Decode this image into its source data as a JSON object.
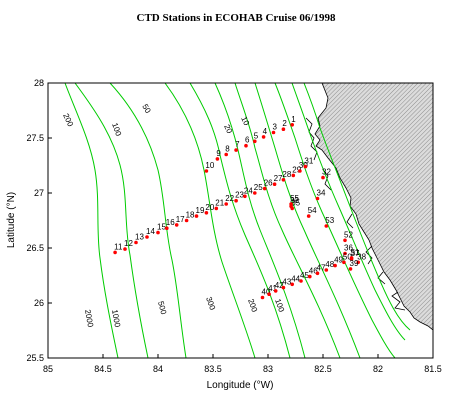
{
  "title": "CTD Stations in ECOHAB Cruise 06/1998",
  "x_axis": {
    "label": "Longitude (°W)",
    "range": [
      85,
      81.5
    ],
    "ticks": [
      {
        "value": 85,
        "label": "85"
      },
      {
        "value": 84.5,
        "label": "84.5"
      },
      {
        "value": 84,
        "label": "84"
      },
      {
        "value": 83.5,
        "label": "83.5"
      },
      {
        "value": 83,
        "label": "83"
      },
      {
        "value": 82.5,
        "label": "82.5"
      },
      {
        "value": 82,
        "label": "82"
      },
      {
        "value": 81.5,
        "label": "81.5"
      }
    ]
  },
  "y_axis": {
    "label": "Latitude (°N)",
    "range": [
      25.5,
      28
    ],
    "ticks": [
      {
        "value": 25.5,
        "label": "25.5"
      },
      {
        "value": 26,
        "label": "26"
      },
      {
        "value": 26.5,
        "label": "26.5"
      },
      {
        "value": 27,
        "label": "27"
      },
      {
        "value": 27.5,
        "label": "27.5"
      },
      {
        "value": 28,
        "label": "28"
      }
    ]
  },
  "colors": {
    "station": "#ff0000",
    "contour": "#00cc00",
    "land_hatch": "#9a9a9a",
    "coastline": "#000000"
  },
  "contour_labels": [
    "200",
    "100",
    "50",
    "20",
    "10",
    "2000",
    "1000",
    "500",
    "300",
    "200",
    "100"
  ],
  "stations": [
    {
      "id": "1",
      "lon": 82.78,
      "lat": 27.62
    },
    {
      "id": "2",
      "lon": 82.86,
      "lat": 27.58
    },
    {
      "id": "3",
      "lon": 82.95,
      "lat": 27.55
    },
    {
      "id": "4",
      "lon": 83.04,
      "lat": 27.51
    },
    {
      "id": "5",
      "lon": 83.12,
      "lat": 27.47
    },
    {
      "id": "6",
      "lon": 83.2,
      "lat": 27.43
    },
    {
      "id": "7",
      "lon": 83.29,
      "lat": 27.39
    },
    {
      "id": "8",
      "lon": 83.38,
      "lat": 27.35
    },
    {
      "id": "9",
      "lon": 83.46,
      "lat": 27.31
    },
    {
      "id": "10",
      "lon": 83.56,
      "lat": 27.2
    },
    {
      "id": "11",
      "lon": 84.39,
      "lat": 26.46
    },
    {
      "id": "12",
      "lon": 84.3,
      "lat": 26.49
    },
    {
      "id": "13",
      "lon": 84.2,
      "lat": 26.55
    },
    {
      "id": "14",
      "lon": 84.1,
      "lat": 26.6
    },
    {
      "id": "15",
      "lon": 84.0,
      "lat": 26.64
    },
    {
      "id": "16",
      "lon": 83.92,
      "lat": 26.68
    },
    {
      "id": "17",
      "lon": 83.83,
      "lat": 26.71
    },
    {
      "id": "18",
      "lon": 83.74,
      "lat": 26.75
    },
    {
      "id": "19",
      "lon": 83.65,
      "lat": 26.79
    },
    {
      "id": "20",
      "lon": 83.56,
      "lat": 26.82
    },
    {
      "id": "21",
      "lon": 83.47,
      "lat": 26.86
    },
    {
      "id": "22",
      "lon": 83.38,
      "lat": 26.9
    },
    {
      "id": "23",
      "lon": 83.29,
      "lat": 26.93
    },
    {
      "id": "24",
      "lon": 83.21,
      "lat": 26.97
    },
    {
      "id": "25",
      "lon": 83.12,
      "lat": 27.0
    },
    {
      "id": "26",
      "lon": 83.03,
      "lat": 27.04
    },
    {
      "id": "27",
      "lon": 82.94,
      "lat": 27.08
    },
    {
      "id": "28",
      "lon": 82.86,
      "lat": 27.12
    },
    {
      "id": "29",
      "lon": 82.77,
      "lat": 27.16
    },
    {
      "id": "30",
      "lon": 82.71,
      "lat": 27.2
    },
    {
      "id": "31",
      "lon": 82.66,
      "lat": 27.24
    },
    {
      "id": "32",
      "lon": 82.5,
      "lat": 27.14
    },
    {
      "id": "33",
      "lon": 82.79,
      "lat": 26.88
    },
    {
      "id": "34",
      "lon": 82.55,
      "lat": 26.95
    },
    {
      "id": "35",
      "lon": 82.78,
      "lat": 26.86
    },
    {
      "id": "36",
      "lon": 82.3,
      "lat": 26.45
    },
    {
      "id": "37",
      "lon": 82.24,
      "lat": 26.4
    },
    {
      "id": "38",
      "lon": 82.18,
      "lat": 26.37
    },
    {
      "id": "39",
      "lon": 82.25,
      "lat": 26.31
    },
    {
      "id": "40",
      "lon": 83.05,
      "lat": 26.05
    },
    {
      "id": "41",
      "lon": 82.99,
      "lat": 26.08
    },
    {
      "id": "42",
      "lon": 82.93,
      "lat": 26.11
    },
    {
      "id": "43",
      "lon": 82.86,
      "lat": 26.14
    },
    {
      "id": "44",
      "lon": 82.78,
      "lat": 26.17
    },
    {
      "id": "45",
      "lon": 82.7,
      "lat": 26.2
    },
    {
      "id": "46",
      "lon": 82.62,
      "lat": 26.24
    },
    {
      "id": "47",
      "lon": 82.55,
      "lat": 26.27
    },
    {
      "id": "48",
      "lon": 82.47,
      "lat": 26.3
    },
    {
      "id": "49",
      "lon": 82.39,
      "lat": 26.34
    },
    {
      "id": "50",
      "lon": 82.31,
      "lat": 26.37
    },
    {
      "id": "51",
      "lon": 82.24,
      "lat": 26.41
    },
    {
      "id": "52",
      "lon": 82.3,
      "lat": 26.57
    },
    {
      "id": "53",
      "lon": 82.47,
      "lat": 26.7
    },
    {
      "id": "54",
      "lon": 82.63,
      "lat": 26.79
    },
    {
      "id": "55",
      "lon": 82.79,
      "lat": 26.9
    }
  ]
}
